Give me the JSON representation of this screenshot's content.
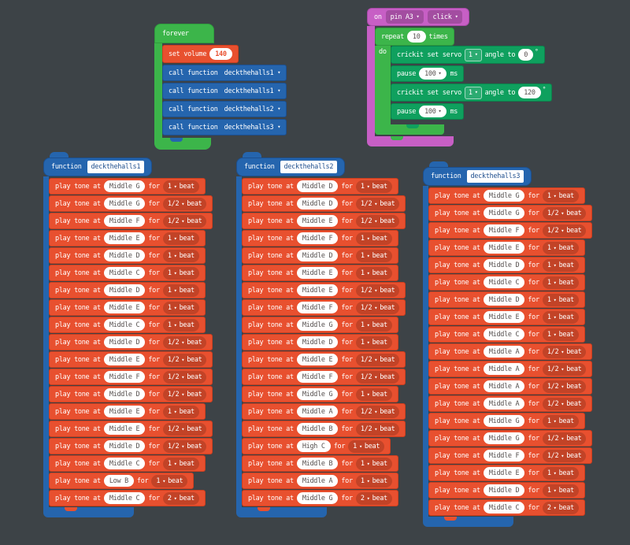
{
  "colors": {
    "background": "#3d4347",
    "loops_green": "#3cb54a",
    "music_red": "#e8502f",
    "functions_blue": "#2565ae",
    "input_purple": "#c75fc5",
    "crickit_teal": "#0fa05e",
    "field_white": "#ffffff"
  },
  "labels": {
    "play": "play tone at",
    "for": "for",
    "beat": "beat"
  },
  "forever": {
    "label": "forever",
    "set_volume": {
      "label": "set volume",
      "value": "140"
    },
    "calls": [
      {
        "label": "call function",
        "fn": "deckthehalls1"
      },
      {
        "label": "call function",
        "fn": "deckthehalls1"
      },
      {
        "label": "call function",
        "fn": "deckthehalls2"
      },
      {
        "label": "call function",
        "fn": "deckthehalls3"
      }
    ]
  },
  "on_pin": {
    "on_label": "on",
    "pin_value": "pin A3",
    "event_value": "click",
    "repeat": {
      "label": "repeat",
      "value": "10",
      "times": "times",
      "do_label": "do"
    },
    "servo1": {
      "text": "crickit set servo",
      "channel": "1",
      "angle_label": "angle to",
      "angle": "0",
      "deg": "°"
    },
    "pause1": {
      "label": "pause",
      "value": "100",
      "unit": "ms"
    },
    "servo2": {
      "text": "crickit set servo",
      "channel": "1",
      "angle_label": "angle to",
      "angle": "120",
      "deg": "°"
    },
    "pause2": {
      "label": "pause",
      "value": "100",
      "unit": "ms"
    }
  },
  "functions": [
    {
      "keyword": "function",
      "name": "deckthehalls1",
      "notes": [
        [
          "Middle G",
          "1"
        ],
        [
          "Middle G",
          "1/2"
        ],
        [
          "Middle F",
          "1/2"
        ],
        [
          "Middle E",
          "1"
        ],
        [
          "Middle D",
          "1"
        ],
        [
          "Middle C",
          "1"
        ],
        [
          "Middle D",
          "1"
        ],
        [
          "Middle E",
          "1"
        ],
        [
          "Middle C",
          "1"
        ],
        [
          "Middle D",
          "1/2"
        ],
        [
          "Middle E",
          "1/2"
        ],
        [
          "Middle F",
          "1/2"
        ],
        [
          "Middle D",
          "1/2"
        ],
        [
          "Middle E",
          "1"
        ],
        [
          "Middle E",
          "1/2"
        ],
        [
          "Middle D",
          "1/2"
        ],
        [
          "Middle C",
          "1"
        ],
        [
          "Low B",
          "1"
        ],
        [
          "Middle C",
          "2"
        ]
      ]
    },
    {
      "keyword": "function",
      "name": "deckthehalls2",
      "notes": [
        [
          "Middle D",
          "1"
        ],
        [
          "Middle D",
          "1/2"
        ],
        [
          "Middle E",
          "1/2"
        ],
        [
          "Middle F",
          "1"
        ],
        [
          "Middle D",
          "1"
        ],
        [
          "Middle E",
          "1"
        ],
        [
          "Middle E",
          "1/2"
        ],
        [
          "Middle F",
          "1/2"
        ],
        [
          "Middle G",
          "1"
        ],
        [
          "Middle D",
          "1"
        ],
        [
          "Middle E",
          "1/2"
        ],
        [
          "Middle F",
          "1/2"
        ],
        [
          "Middle G",
          "1"
        ],
        [
          "Middle A",
          "1/2"
        ],
        [
          "Middle B",
          "1/2"
        ],
        [
          "High C",
          "1"
        ],
        [
          "Middle B",
          "1"
        ],
        [
          "Middle A",
          "1"
        ],
        [
          "Middle G",
          "2"
        ]
      ]
    },
    {
      "keyword": "function",
      "name": "deckthehalls3",
      "notes": [
        [
          "Middle G",
          "1"
        ],
        [
          "Middle G",
          "1/2"
        ],
        [
          "Middle F",
          "1/2"
        ],
        [
          "Middle E",
          "1"
        ],
        [
          "Middle D",
          "1"
        ],
        [
          "Middle C",
          "1"
        ],
        [
          "Middle D",
          "1"
        ],
        [
          "Middle E",
          "1"
        ],
        [
          "Middle C",
          "1"
        ],
        [
          "Middle A",
          "1/2"
        ],
        [
          "Middle A",
          "1/2"
        ],
        [
          "Middle A",
          "1/2"
        ],
        [
          "Middle A",
          "1/2"
        ],
        [
          "Middle G",
          "1"
        ],
        [
          "Middle G",
          "1/2"
        ],
        [
          "Middle F",
          "1/2"
        ],
        [
          "Middle E",
          "1"
        ],
        [
          "Middle D",
          "1"
        ],
        [
          "Middle C",
          "2"
        ]
      ]
    }
  ]
}
